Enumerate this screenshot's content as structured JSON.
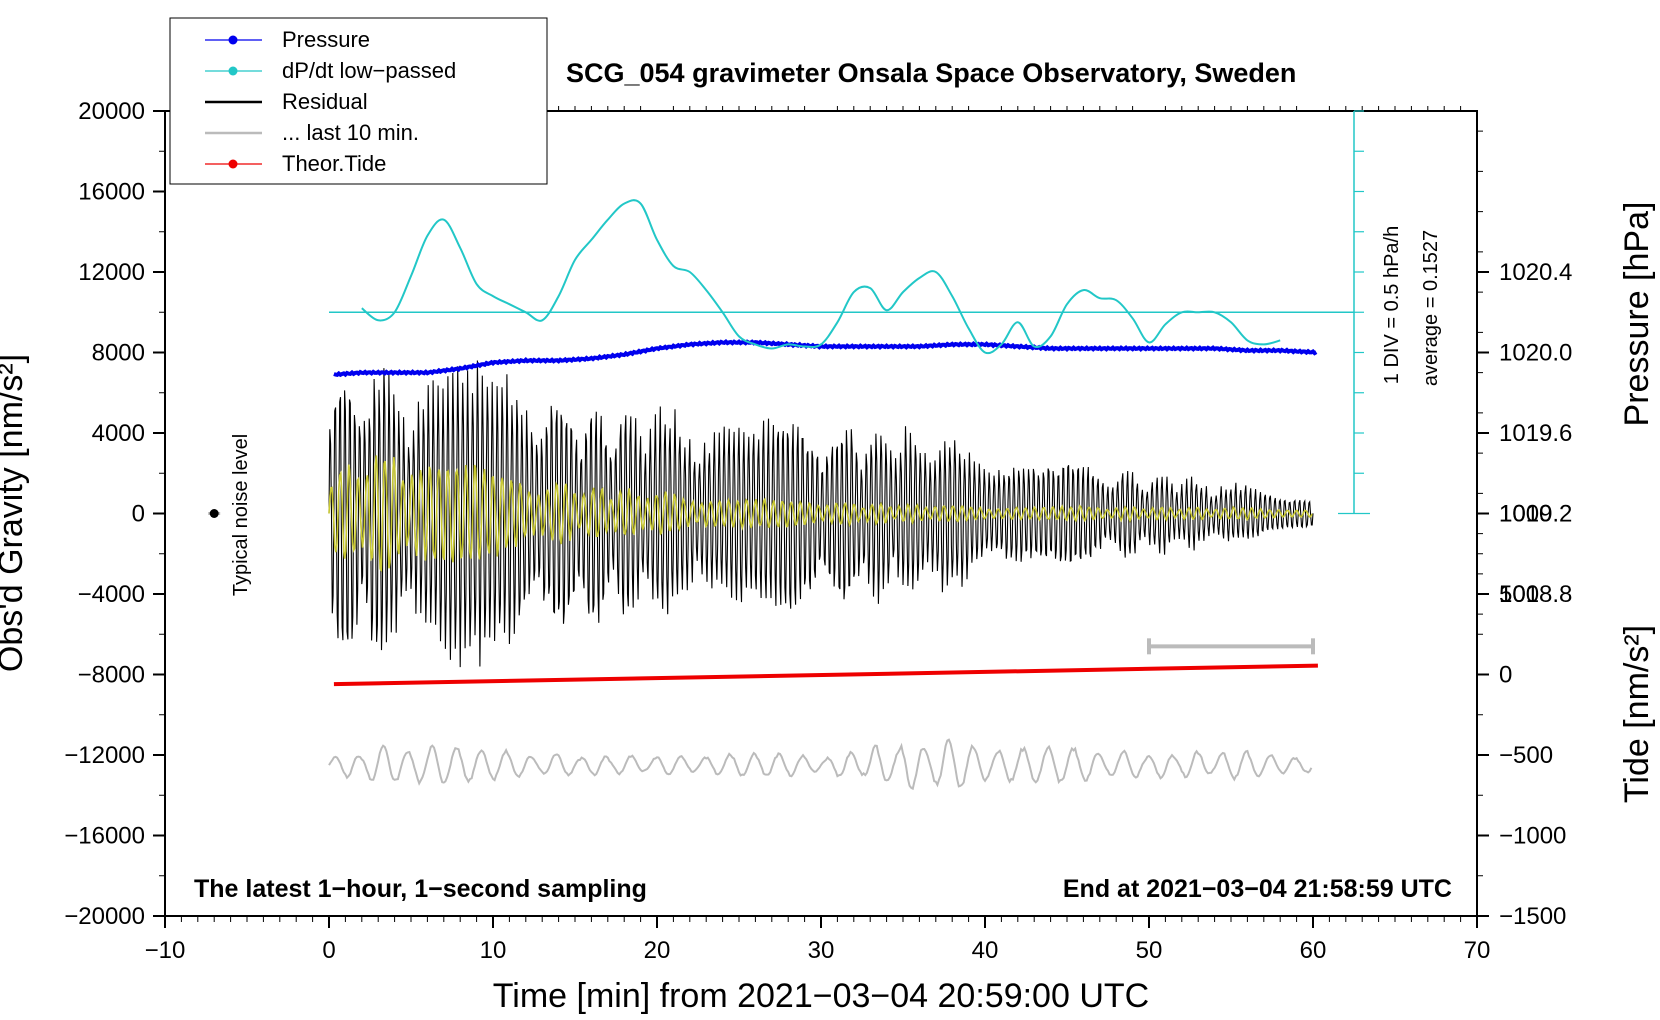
{
  "colors": {
    "pressure": "#0000ee",
    "dpdt": "#22c7c7",
    "residual": "#000000",
    "last10": "#bbbbbb",
    "tide": "#ee0000",
    "residual_filtered": "#c8c832"
  },
  "chart_data": {
    "type": "line",
    "title": "SCG_054 gravimeter Onsala Space Observatory, Sweden",
    "xlabel": "Time [min] from 2021−03−04 20:59:00 UTC",
    "ylabel_left": "Obs'd Gravity [nm/s²]",
    "ylabel_right_top": "Pressure [hPa]",
    "ylabel_right_bottom": "Tide [nm/s²]",
    "xlim": [
      -10,
      70
    ],
    "ylim_left": [
      -20000,
      20000
    ],
    "x_ticks": [
      "−10",
      "0",
      "10",
      "20",
      "30",
      "40",
      "50",
      "60",
      "70"
    ],
    "y_left_ticks": [
      "20000",
      "16000",
      "12000",
      "8000",
      "4000",
      "0",
      "−4000",
      "−8000",
      "−12000",
      "−16000",
      "−20000"
    ],
    "pressure_ticks": [
      "1020.4",
      "1020.0",
      "1019.6",
      "1019.2",
      "1018.8"
    ],
    "tide_ticks": [
      "1000",
      "500",
      "0",
      "−500",
      "−1000",
      "−1500"
    ],
    "pressure_axis": {
      "value_at_gravity_20000": 1021.2,
      "hpa_per_4000_gravity": 0.4
    },
    "tide_axis": {
      "value_at_gravity_minus_20000": -1500,
      "per_4000_gravity": 500
    },
    "legend": [
      {
        "label": "Pressure",
        "style": "line-dot",
        "color_key": "pressure"
      },
      {
        "label": "dP/dt low−passed",
        "style": "line-dot",
        "color_key": "dpdt"
      },
      {
        "label": "Residual",
        "style": "line",
        "color_key": "residual"
      },
      {
        "label": "... last 10 min.",
        "style": "line",
        "color_key": "last10"
      },
      {
        "label": "Theor.Tide",
        "style": "line-dot",
        "color_key": "tide"
      }
    ],
    "legend_position": "top-left",
    "series": [
      {
        "name": "Pressure",
        "axis": "pressure",
        "x": [
          0.3,
          2,
          4,
          6,
          8,
          10,
          12,
          14,
          16,
          18,
          20,
          22,
          24,
          26,
          28,
          30,
          32,
          34,
          36,
          38,
          40,
          42,
          44,
          46,
          48,
          50,
          52,
          54,
          56,
          58,
          60.3
        ],
        "values": [
          1019.89,
          1019.9,
          1019.9,
          1019.9,
          1019.92,
          1019.95,
          1019.96,
          1019.96,
          1019.97,
          1019.99,
          1020.02,
          1020.04,
          1020.05,
          1020.05,
          1020.04,
          1020.03,
          1020.03,
          1020.03,
          1020.03,
          1020.04,
          1020.04,
          1020.03,
          1020.02,
          1020.02,
          1020.02,
          1020.02,
          1020.02,
          1020.02,
          1020.01,
          1020.01,
          1020.0
        ]
      },
      {
        "name": "dP/dt low−passed",
        "axis": "gravity",
        "x": [
          2,
          3,
          4,
          5,
          6,
          7,
          8,
          9,
          10,
          11,
          12,
          13,
          14,
          15,
          16,
          17,
          18,
          19,
          20,
          21,
          22,
          23,
          24,
          25,
          26,
          27,
          28,
          29,
          30,
          31,
          32,
          33,
          34,
          35,
          36,
          37,
          38,
          39,
          40,
          41,
          42,
          43,
          44,
          45,
          46,
          47,
          48,
          49,
          50,
          51,
          52,
          53,
          54,
          55,
          56,
          57,
          58
        ],
        "values": [
          10200,
          9600,
          10000,
          11800,
          13800,
          14600,
          13200,
          11400,
          10800,
          10400,
          10000,
          9600,
          10800,
          12600,
          13600,
          14600,
          15400,
          15400,
          13600,
          12300,
          12000,
          11100,
          10000,
          8800,
          8400,
          8200,
          8400,
          8300,
          8400,
          9500,
          11000,
          11200,
          10100,
          11000,
          11700,
          12000,
          10800,
          9200,
          8000,
          8400,
          9500,
          8300,
          8800,
          10400,
          11100,
          10700,
          10600,
          9700,
          8500,
          9400,
          10000,
          10000,
          10000,
          9500,
          8600,
          8400,
          8600
        ]
      },
      {
        "name": "dP/dt reference (average)",
        "axis": "gravity",
        "x": [
          0,
          62.5
        ],
        "values": [
          10000,
          10000
        ]
      },
      {
        "name": "Residual",
        "axis": "gravity",
        "x_range": [
          0,
          60
        ],
        "period_min": 0.3,
        "envelope_x": [
          0,
          4,
          8,
          12,
          16,
          20,
          24,
          28,
          32,
          36,
          40,
          44,
          48,
          52,
          56,
          60
        ],
        "envelope_amplitude": [
          8400,
          7600,
          8000,
          7100,
          6200,
          5800,
          5400,
          5200,
          4900,
          4600,
          3800,
          3000,
          2500,
          2000,
          1500,
          1300
        ]
      },
      {
        "name": "Residual (filtered)",
        "axis": "gravity",
        "x_range": [
          0,
          60
        ],
        "period_min": 0.55,
        "envelope_x": [
          0,
          4,
          8,
          12,
          16,
          20,
          24,
          28,
          32,
          36,
          40,
          44,
          48,
          52,
          56,
          60
        ],
        "envelope_amplitude": [
          2500,
          3400,
          2800,
          1800,
          1500,
          1200,
          900,
          700,
          600,
          500,
          450,
          400,
          380,
          350,
          330,
          300
        ]
      },
      {
        "name": "... last 10 min.",
        "axis": "gravity",
        "x_range": [
          0,
          60
        ],
        "offset": -12500,
        "period_min": 1.5,
        "envelope_x": [
          0,
          5,
          10,
          15,
          20,
          25,
          30,
          35,
          40,
          45,
          50,
          55,
          60
        ],
        "envelope_amplitude": [
          500,
          1300,
          800,
          600,
          500,
          700,
          500,
          1300,
          1400,
          1000,
          700,
          800,
          700
        ]
      },
      {
        "name": "Theor.Tide",
        "axis": "tide",
        "x": [
          0.3,
          60.3
        ],
        "values": [
          -60,
          55
        ]
      }
    ],
    "last10_bar": {
      "x": [
        50,
        60
      ],
      "y": -6600
    },
    "noise_marker": {
      "x": -7,
      "y": 0
    },
    "annotations": {
      "noise_label": "Typical noise level",
      "scale_note": "1 DIV = 0.5 hPa/h",
      "average_note": "average = 0.1527",
      "bottom_left": "The latest 1−hour, 1−second sampling",
      "bottom_right": "End at 2021−03−04 21:58:59 UTC"
    }
  }
}
